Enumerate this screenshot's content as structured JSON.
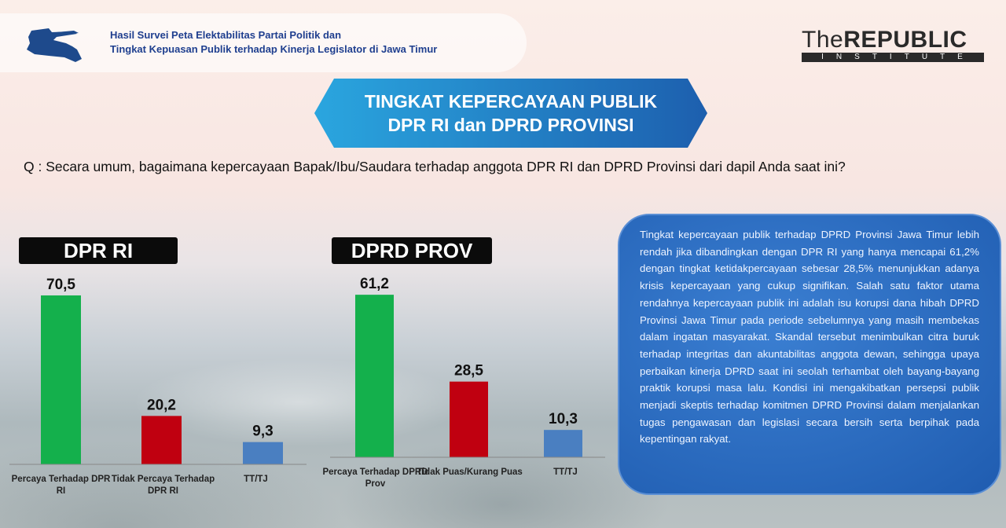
{
  "header": {
    "subtitle_line1": "Hasil Survei Peta Elektabilitas Partai Politik dan",
    "subtitle_line2": "Tingkat Kepuasan Publik terhadap Kinerja Legislator di Jawa Timur",
    "map_icon": "east-java-map-icon"
  },
  "logo": {
    "the": "The",
    "republic": "REPUBLIC",
    "institute": "INSTITUTE"
  },
  "banner": {
    "line1": "TINGKAT KEPERCAYAAN PUBLIK",
    "line2": "DPR RI dan DPRD PROVINSI"
  },
  "question": "Q : Secara umum, bagaimana kepercayaan Bapak/Ibu/Saudara terhadap anggota DPR RI dan DPRD Provinsi dari dapil Anda saat ini?",
  "chart_data": [
    {
      "type": "bar",
      "title": "DPR RI",
      "categories": [
        "Percaya Terhadap DPR RI",
        "Tidak Percaya Terhadap DPR RI",
        "TT/TJ"
      ],
      "values": [
        70.5,
        20.2,
        9.3
      ],
      "labels": [
        "70,5",
        "20,2",
        "9,3"
      ],
      "colors": [
        "#14b04c",
        "#c00010",
        "#4a7fc1"
      ]
    },
    {
      "type": "bar",
      "title": "DPRD PROV",
      "categories": [
        "Percaya Terhadap DPRD Prov",
        "Tidak Puas/Kurang Puas",
        "TT/TJ"
      ],
      "values": [
        61.2,
        28.5,
        10.3
      ],
      "labels": [
        "61,2",
        "28,5",
        "10,3"
      ],
      "colors": [
        "#14b04c",
        "#c00010",
        "#4a7fc1"
      ]
    }
  ],
  "summary": "Tingkat kepercayaan publik terhadap DPRD Provinsi Jawa Timur lebih rendah jika dibandingkan dengan DPR RI yang hanya mencapai 61,2% dengan tingkat ketidakpercayaan sebesar 28,5% menunjukkan adanya krisis kepercayaan yang cukup signifikan. Salah satu faktor utama rendahnya kepercayaan publik ini adalah isu korupsi dana hibah DPRD Provinsi Jawa Timur pada periode sebelumnya yang masih membekas dalam ingatan masyarakat. Skandal tersebut menimbulkan citra buruk terhadap integritas dan akuntabilitas anggota dewan, sehingga upaya perbaikan kinerja DPRD saat ini seolah terhambat oleh bayang-bayang praktik korupsi masa lalu. Kondisi ini mengakibatkan persepsi publik menjadi skeptis terhadap komitmen DPRD Provinsi dalam menjalankan tugas pengawasan dan legislasi secara bersih serta berpihak pada kepentingan rakyat."
}
